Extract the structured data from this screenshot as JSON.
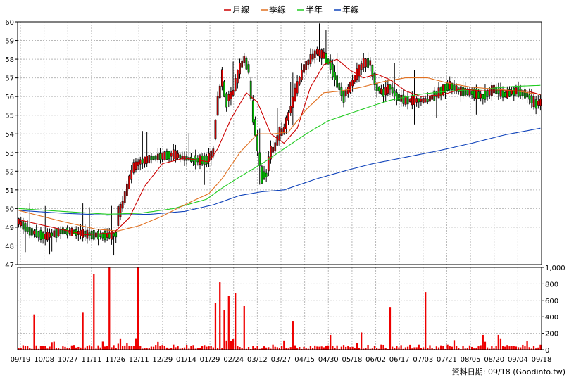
{
  "chart_data": {
    "type": "candlestick",
    "legend": [
      {
        "name": "月線",
        "color": "#cc0000"
      },
      {
        "name": "季線",
        "color": "#e07020"
      },
      {
        "name": "半年",
        "color": "#22cc22"
      },
      {
        "name": "年線",
        "color": "#1144bb"
      }
    ],
    "legend_position": "top-center",
    "grid": true,
    "price_axis": {
      "min": 47,
      "max": 60,
      "ticks": [
        "47",
        "48",
        "49",
        "50",
        "51",
        "52",
        "53",
        "54",
        "55",
        "56",
        "57",
        "58",
        "59",
        "60"
      ]
    },
    "volume_axis": {
      "min": 0,
      "max": 1000,
      "ticks": [
        "0",
        "200",
        "400",
        "600",
        "800",
        "1,000"
      ]
    },
    "x_ticks": [
      "09/19",
      "10/08",
      "10/27",
      "11/11",
      "11/26",
      "12/11",
      "12/29",
      "01/14",
      "01/29",
      "02/24",
      "03/12",
      "03/27",
      "04/15",
      "04/30",
      "05/18",
      "06/02",
      "06/17",
      "07/03",
      "07/21",
      "08/05",
      "08/20",
      "09/04",
      "09/18"
    ],
    "price_path": [
      [
        0,
        49.3
      ],
      [
        5,
        48.8
      ],
      [
        12,
        48.5
      ],
      [
        20,
        48.8
      ],
      [
        27,
        48.7
      ],
      [
        33,
        48.6
      ],
      [
        40,
        48.55
      ],
      [
        44,
        48.6
      ],
      [
        45,
        49.6
      ],
      [
        47,
        50.2
      ],
      [
        49,
        51.0
      ],
      [
        52,
        52.2
      ],
      [
        55,
        52.5
      ],
      [
        60,
        52.7
      ],
      [
        65,
        52.8
      ],
      [
        70,
        52.9
      ],
      [
        75,
        52.7
      ],
      [
        80,
        52.6
      ],
      [
        85,
        52.6
      ],
      [
        88,
        53.0
      ],
      [
        90,
        55.5
      ],
      [
        92,
        57.0
      ],
      [
        94,
        55.8
      ],
      [
        97,
        56.2
      ],
      [
        100,
        57.5
      ],
      [
        102,
        58.0
      ],
      [
        104,
        57.5
      ],
      [
        106,
        55.2
      ],
      [
        108,
        53.5
      ],
      [
        110,
        51.8
      ],
      [
        112,
        51.8
      ],
      [
        114,
        53.0
      ],
      [
        116,
        53.3
      ],
      [
        118,
        54.0
      ],
      [
        120,
        54.2
      ],
      [
        123,
        55.3
      ],
      [
        126,
        56.5
      ],
      [
        129,
        57.5
      ],
      [
        132,
        58.0
      ],
      [
        135,
        58.4
      ],
      [
        138,
        58.2
      ],
      [
        141,
        57.7
      ],
      [
        144,
        56.8
      ],
      [
        147,
        56.0
      ],
      [
        150,
        56.5
      ],
      [
        153,
        57.2
      ],
      [
        156,
        57.8
      ],
      [
        159,
        57.8
      ],
      [
        162,
        56.5
      ],
      [
        165,
        56.2
      ],
      [
        168,
        56.5
      ],
      [
        171,
        56.0
      ],
      [
        175,
        55.8
      ],
      [
        180,
        55.8
      ],
      [
        185,
        55.8
      ],
      [
        190,
        56.2
      ],
      [
        195,
        56.6
      ],
      [
        200,
        56.3
      ],
      [
        205,
        56.2
      ],
      [
        210,
        56.0
      ],
      [
        215,
        56.4
      ],
      [
        220,
        56.1
      ],
      [
        225,
        56.3
      ],
      [
        230,
        56.1
      ],
      [
        234,
        55.6
      ],
      [
        236,
        55.7
      ]
    ],
    "ma_month": [
      [
        0,
        49.4
      ],
      [
        15,
        49.0
      ],
      [
        30,
        48.6
      ],
      [
        43,
        48.7
      ],
      [
        50,
        49.5
      ],
      [
        57,
        51.2
      ],
      [
        65,
        52.4
      ],
      [
        75,
        52.7
      ],
      [
        86,
        52.5
      ],
      [
        90,
        53.2
      ],
      [
        96,
        54.8
      ],
      [
        103,
        56.2
      ],
      [
        108,
        55.7
      ],
      [
        114,
        54.0
      ],
      [
        120,
        53.5
      ],
      [
        126,
        54.3
      ],
      [
        132,
        56.5
      ],
      [
        138,
        57.7
      ],
      [
        144,
        58.0
      ],
      [
        150,
        57.4
      ],
      [
        156,
        57.0
      ],
      [
        162,
        57.2
      ],
      [
        168,
        56.9
      ],
      [
        175,
        56.3
      ],
      [
        182,
        56.0
      ],
      [
        192,
        56.1
      ],
      [
        200,
        56.4
      ],
      [
        210,
        56.3
      ],
      [
        220,
        56.3
      ],
      [
        230,
        56.3
      ],
      [
        236,
        56.1
      ]
    ],
    "ma_quarter": [
      [
        0,
        49.9
      ],
      [
        20,
        49.3
      ],
      [
        35,
        48.9
      ],
      [
        45,
        48.8
      ],
      [
        55,
        49.1
      ],
      [
        65,
        49.6
      ],
      [
        75,
        50.2
      ],
      [
        86,
        50.8
      ],
      [
        92,
        51.6
      ],
      [
        100,
        53.0
      ],
      [
        108,
        54.0
      ],
      [
        115,
        54.0
      ],
      [
        122,
        54.1
      ],
      [
        130,
        55.3
      ],
      [
        138,
        56.2
      ],
      [
        146,
        56.3
      ],
      [
        155,
        56.5
      ],
      [
        165,
        56.8
      ],
      [
        175,
        57.0
      ],
      [
        185,
        57.0
      ],
      [
        195,
        56.7
      ],
      [
        205,
        56.5
      ],
      [
        215,
        56.4
      ],
      [
        225,
        56.3
      ],
      [
        236,
        56.1
      ]
    ],
    "ma_half": [
      [
        0,
        50.0
      ],
      [
        20,
        49.85
      ],
      [
        40,
        49.7
      ],
      [
        55,
        49.75
      ],
      [
        70,
        50.0
      ],
      [
        85,
        50.5
      ],
      [
        92,
        51.1
      ],
      [
        100,
        51.7
      ],
      [
        110,
        52.4
      ],
      [
        120,
        53.2
      ],
      [
        130,
        54.0
      ],
      [
        140,
        54.7
      ],
      [
        150,
        55.1
      ],
      [
        160,
        55.5
      ],
      [
        168,
        55.8
      ],
      [
        180,
        56.1
      ],
      [
        195,
        56.3
      ],
      [
        210,
        56.4
      ],
      [
        225,
        56.55
      ],
      [
        236,
        56.6
      ]
    ],
    "ma_year": [
      [
        0,
        49.9
      ],
      [
        20,
        49.75
      ],
      [
        40,
        49.65
      ],
      [
        60,
        49.7
      ],
      [
        75,
        49.85
      ],
      [
        88,
        50.2
      ],
      [
        100,
        50.7
      ],
      [
        110,
        50.9
      ],
      [
        120,
        51.0
      ],
      [
        135,
        51.6
      ],
      [
        150,
        52.1
      ],
      [
        160,
        52.4
      ],
      [
        175,
        52.75
      ],
      [
        190,
        53.1
      ],
      [
        205,
        53.5
      ],
      [
        220,
        53.95
      ],
      [
        236,
        54.3
      ]
    ],
    "volume_spikes": [
      [
        7,
        430
      ],
      [
        29,
        450
      ],
      [
        34,
        920
      ],
      [
        41,
        1000
      ],
      [
        54,
        1000
      ],
      [
        89,
        570
      ],
      [
        91,
        820
      ],
      [
        93,
        480
      ],
      [
        95,
        650
      ],
      [
        98,
        690
      ],
      [
        102,
        530
      ],
      [
        124,
        350
      ],
      [
        141,
        180
      ],
      [
        155,
        210
      ],
      [
        168,
        520
      ],
      [
        184,
        700
      ],
      [
        210,
        180
      ],
      [
        217,
        180
      ],
      [
        230,
        110
      ]
    ]
  },
  "credit": "資料日期: 09/18 (Goodinfo.tw)"
}
